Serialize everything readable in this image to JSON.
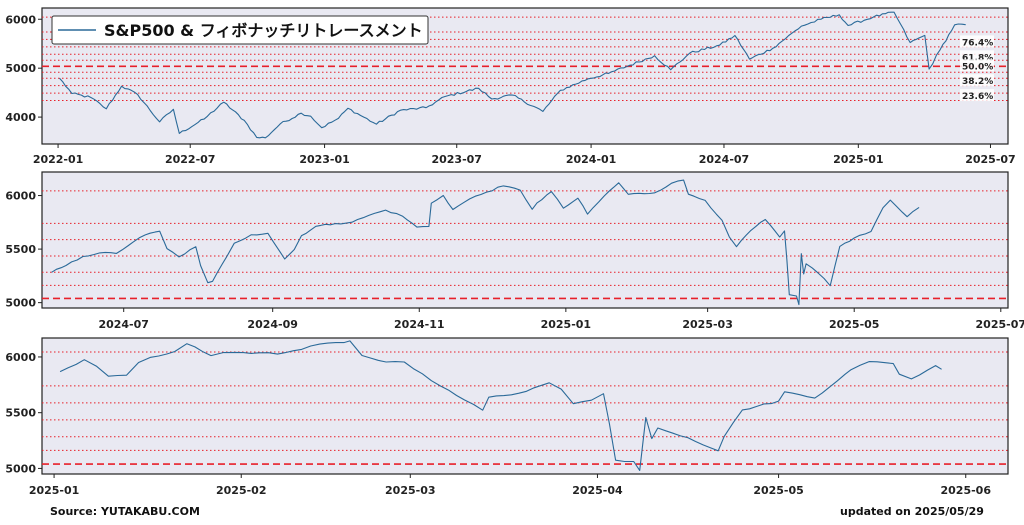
{
  "title": "S&P500 & フィボナッチリトレースメント",
  "source": "Source: YUTAKABU.COM",
  "updated": "updated on 2025/05/29",
  "colors": {
    "line": "#2b6a99",
    "bg": "#e9e9f2",
    "fib": "#e8202a"
  },
  "fib_levels": [
    {
      "label": "76.4%",
      "value": 5588
    },
    {
      "label": "61.8%",
      "value": 5284
    },
    {
      "label": "50.0%",
      "value": 5039
    },
    {
      "label": "38.2%",
      "value": 4795
    },
    {
      "label": "23.6%",
      "value": 4491
    }
  ],
  "chart_data": [
    {
      "type": "line",
      "series": [
        {
          "name": "S&P500",
          "x": [
            "2022-01-03",
            "2022-01-20",
            "2022-02-15",
            "2022-03-08",
            "2022-03-29",
            "2022-04-20",
            "2022-05-20",
            "2022-06-08",
            "2022-06-16",
            "2022-07-20",
            "2022-08-16",
            "2022-09-13",
            "2022-09-30",
            "2022-10-12",
            "2022-11-01",
            "2022-11-30",
            "2022-12-13",
            "2022-12-28",
            "2023-01-20",
            "2023-02-02",
            "2023-03-13",
            "2023-04-15",
            "2023-05-20",
            "2023-06-15",
            "2023-07-31",
            "2023-08-18",
            "2023-09-15",
            "2023-10-27",
            "2023-11-20",
            "2023-12-28",
            "2024-01-25",
            "2024-03-28",
            "2024-04-19",
            "2024-05-15",
            "2024-06-25",
            "2024-07-16",
            "2024-08-05",
            "2024-09-06",
            "2024-10-15",
            "2024-11-11",
            "2024-12-06",
            "2024-12-18",
            "2025-01-22",
            "2025-02-19",
            "2025-03-13",
            "2025-04-02",
            "2025-04-08",
            "2025-04-23",
            "2025-05-13",
            "2025-05-28"
          ],
          "y": [
            4796,
            4482,
            4401,
            4170,
            4631,
            4460,
            3901,
            4160,
            3666,
            3960,
            4305,
            3932,
            3585,
            3577,
            3856,
            4080,
            4019,
            3783,
            3973,
            4179,
            3855,
            4140,
            4191,
            4420,
            4588,
            4370,
            4450,
            4117,
            4547,
            4783,
            4894,
            5254,
            4967,
            5308,
            5469,
            5667,
            5186,
            5408,
            5859,
            6001,
            6090,
            5872,
            6049,
            6144,
            5522,
            5670,
            4982,
            5375,
            5886,
            5889
          ]
        }
      ],
      "xticks": [
        "2022-01",
        "2022-07",
        "2023-01",
        "2023-07",
        "2024-01",
        "2024-07",
        "2025-01",
        "2025-07"
      ],
      "yticks": [
        4000,
        5000,
        6000
      ],
      "ylim": [
        3450,
        6230
      ],
      "xlim": [
        "2021-12-10",
        "2025-07-25"
      ],
      "legend": "top-left",
      "fib_labels": true
    },
    {
      "type": "line",
      "series": [
        {
          "name": "S&P500",
          "x": [
            "2024-06-01",
            "2024-06-07",
            "2024-06-14",
            "2024-06-21",
            "2024-06-28",
            "2024-07-05",
            "2024-07-10",
            "2024-07-16",
            "2024-07-19",
            "2024-07-24",
            "2024-07-31",
            "2024-08-02",
            "2024-08-05",
            "2024-08-07",
            "2024-08-13",
            "2024-08-16",
            "2024-08-23",
            "2024-08-30",
            "2024-09-06",
            "2024-09-10",
            "2024-09-13",
            "2024-09-19",
            "2024-09-27",
            "2024-10-04",
            "2024-10-11",
            "2024-10-18",
            "2024-10-25",
            "2024-10-31",
            "2024-11-05",
            "2024-11-06",
            "2024-11-11",
            "2024-11-15",
            "2024-11-22",
            "2024-11-29",
            "2024-12-06",
            "2024-12-13",
            "2024-12-18",
            "2024-12-20",
            "2024-12-26",
            "2024-12-31",
            "2025-01-06",
            "2025-01-10",
            "2025-01-17",
            "2025-01-23",
            "2025-01-27",
            "2025-02-07",
            "2025-02-14",
            "2025-02-19",
            "2025-02-21",
            "2025-02-28",
            "2025-03-07",
            "2025-03-10",
            "2025-03-13",
            "2025-03-19",
            "2025-03-25",
            "2025-03-31",
            "2025-04-02",
            "2025-04-03",
            "2025-04-04",
            "2025-04-07",
            "2025-04-08",
            "2025-04-09",
            "2025-04-10",
            "2025-04-11",
            "2025-04-16",
            "2025-04-21",
            "2025-04-25",
            "2025-05-01",
            "2025-05-08",
            "2025-05-13",
            "2025-05-16",
            "2025-05-21",
            "2025-05-23",
            "2025-05-28"
          ],
          "y": [
            5283,
            5347,
            5431,
            5465,
            5460,
            5567,
            5633,
            5667,
            5505,
            5427,
            5522,
            5346,
            5186,
            5199,
            5434,
            5554,
            5634,
            5648,
            5408,
            5496,
            5626,
            5713,
            5738,
            5751,
            5815,
            5864,
            5808,
            5705,
            5712,
            5929,
            6001,
            5870,
            5969,
            6032,
            6090,
            6051,
            5872,
            5931,
            6037,
            5882,
            5975,
            5827,
            5997,
            6119,
            6012,
            6026,
            6115,
            6144,
            6013,
            5955,
            5770,
            5614,
            5522,
            5675,
            5776,
            5612,
            5670,
            5397,
            5074,
            5062,
            4982,
            5457,
            5268,
            5363,
            5276,
            5158,
            5525,
            5604,
            5664,
            5886,
            5958,
            5845,
            5803,
            5889
          ]
        }
      ],
      "xticks": [
        "2024-07",
        "2024-09",
        "2024-11",
        "2025-01",
        "2025-03",
        "2025-05",
        "2025-07"
      ],
      "yticks": [
        5000,
        5500,
        6000
      ],
      "ylim": [
        4950,
        6220
      ],
      "xlim": [
        "2024-05-28",
        "2025-07-04"
      ],
      "fib_labels": false
    },
    {
      "type": "line",
      "series": [
        {
          "name": "S&P500",
          "x": [
            "2025-01-02",
            "2025-01-06",
            "2025-01-08",
            "2025-01-10",
            "2025-01-13",
            "2025-01-15",
            "2025-01-17",
            "2025-01-21",
            "2025-01-23",
            "2025-01-27",
            "2025-01-29",
            "2025-01-31",
            "2025-02-04",
            "2025-02-07",
            "2025-02-11",
            "2025-02-14",
            "2025-02-18",
            "2025-02-19",
            "2025-02-21",
            "2025-02-25",
            "2025-02-28",
            "2025-03-03",
            "2025-03-06",
            "2025-03-10",
            "2025-03-13",
            "2025-03-14",
            "2025-03-19",
            "2025-03-24",
            "2025-03-26",
            "2025-03-28",
            "2025-03-31",
            "2025-04-02",
            "2025-04-03",
            "2025-04-04",
            "2025-04-07",
            "2025-04-08",
            "2025-04-09",
            "2025-04-10",
            "2025-04-11",
            "2025-04-16",
            "2025-04-21",
            "2025-04-22",
            "2025-04-25",
            "2025-05-01",
            "2025-05-02",
            "2025-05-07",
            "2025-05-12",
            "2025-05-13",
            "2025-05-16",
            "2025-05-20",
            "2025-05-21",
            "2025-05-23",
            "2025-05-27",
            "2025-05-28"
          ],
          "y": [
            5869,
            5975,
            5918,
            5827,
            5836,
            5950,
            5997,
            6049,
            6119,
            6012,
            6039,
            6041,
            6037,
            6026,
            6068,
            6115,
            6129,
            6144,
            6013,
            5955,
            5955,
            5849,
            5739,
            5614,
            5522,
            5639,
            5675,
            5768,
            5712,
            5581,
            5612,
            5670,
            5397,
            5074,
            5062,
            4982,
            5457,
            5268,
            5363,
            5276,
            5158,
            5287,
            5525,
            5604,
            5687,
            5631,
            5844,
            5886,
            5958,
            5940,
            5845,
            5803,
            5922,
            5889
          ]
        }
      ],
      "xticks": [
        "2025-01",
        "2025-02",
        "2025-03",
        "2025-04",
        "2025-05",
        "2025-06"
      ],
      "yticks": [
        5000,
        5500,
        6000
      ],
      "ylim": [
        4950,
        6170
      ],
      "xlim": [
        "2024-12-30",
        "2025-06-08"
      ],
      "fib_labels": false
    }
  ]
}
